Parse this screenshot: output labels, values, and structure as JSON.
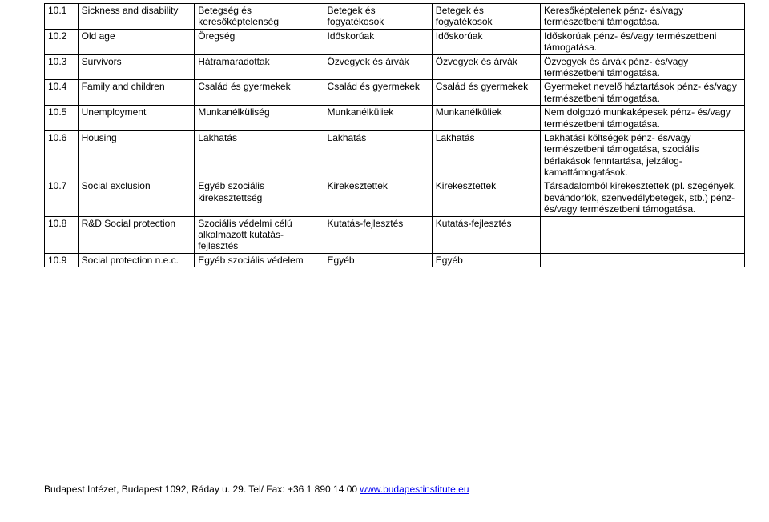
{
  "table": {
    "rows": [
      {
        "c0": "10.1",
        "c1": "Sickness and disability",
        "c2": "Betegség és keresőképtelenség",
        "c3": "Betegek és fogyatékosok",
        "c4": "Betegek és fogyatékosok",
        "c5": "Keresőképtelenek pénz- és/vagy természetbeni támogatása."
      },
      {
        "c0": "10.2",
        "c1": "Old age",
        "c2": "Öregség",
        "c3": "Időskorúak",
        "c4": "Időskorúak",
        "c5": "Időskorúak pénz- és/vagy természetbeni támogatása."
      },
      {
        "c0": "10.3",
        "c1": "Survivors",
        "c2": "Hátramaradottak",
        "c3": "Özvegyek és árvák",
        "c4": "Özvegyek és árvák",
        "c5": "Özvegyek és árvák pénz- és/vagy természetbeni támogatása."
      },
      {
        "c0": "10.4",
        "c1": "Family and children",
        "c2": "Család és gyermekek",
        "c3": "Család és gyermekek",
        "c4": "Család és gyermekek",
        "c5": "Gyermeket nevelő háztartások pénz- és/vagy természetbeni támogatása."
      },
      {
        "c0": "10.5",
        "c1": "Unemployment",
        "c2": "Munkanélküliség",
        "c3": "Munkanélküliek",
        "c4": "Munkanélküliek",
        "c5": "Nem dolgozó munkaképesek pénz- és/vagy természetbeni támogatása."
      },
      {
        "c0": "10.6",
        "c1": "Housing",
        "c2": "Lakhatás",
        "c3": "Lakhatás",
        "c4": "Lakhatás",
        "c5": "Lakhatási költségek pénz- és/vagy természetbeni támogatása, szociális bérlakások fenntartása, jelzálog-kamattámogatások."
      },
      {
        "c0": "10.7",
        "c1": "Social exclusion",
        "c2": "Egyéb szociális kirekesztettség",
        "c3": "Kirekesztettek",
        "c4": "Kirekesztettek",
        "c5": "Társadalomból kirekesztettek (pl. szegények, bevándorlók, szenvedélybetegek, stb.) pénz- és/vagy természetbeni támogatása."
      },
      {
        "c0": "10.8",
        "c1": "R&D Social protection",
        "c2": "Szociális védelmi célú alkalmazott kutatás-fejlesztés",
        "c3": "Kutatás-fejlesztés",
        "c4": "Kutatás-fejlesztés",
        "c5": ""
      },
      {
        "c0": "10.9",
        "c1": "Social protection n.e.c.",
        "c2": "Egyéb szociális védelem",
        "c3": "Egyéb",
        "c4": "Egyéb",
        "c5": ""
      }
    ]
  },
  "footer": {
    "text_prefix": "Budapest Intézet, Budapest 1092,  Ráday u. 29.  Tel/ Fax: +36 1 890 14 00  ",
    "link_text": "www.budapestinstitute.eu"
  }
}
